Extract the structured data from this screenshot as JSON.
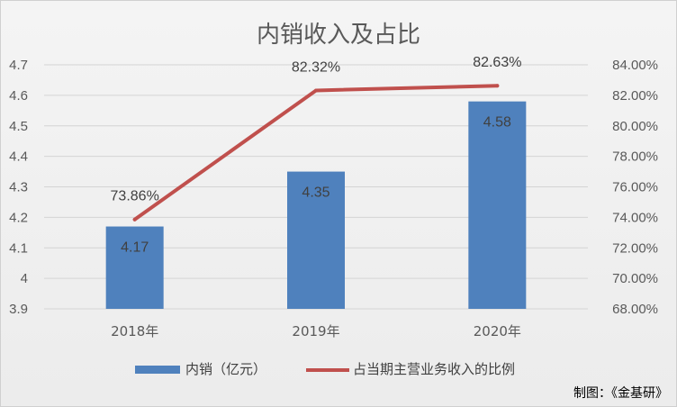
{
  "chart_data": {
    "type": "bar+line",
    "title": "内销收入及占比",
    "categories": [
      "2018年",
      "2019年",
      "2020年"
    ],
    "series": [
      {
        "name": "内销（亿元）",
        "type": "bar",
        "axis": "left",
        "color": "#4f81bd",
        "values": [
          4.17,
          4.35,
          4.58
        ],
        "labels": [
          "4.17",
          "4.35",
          "4.58"
        ]
      },
      {
        "name": "占当期主营业务收入的比例",
        "type": "line",
        "axis": "right",
        "color": "#c0504d",
        "values": [
          73.86,
          82.32,
          82.63
        ],
        "labels": [
          "73.86%",
          "82.32%",
          "82.63%"
        ]
      }
    ],
    "y_left": {
      "min": 3.9,
      "max": 4.7,
      "ticks": [
        3.9,
        4.0,
        4.1,
        4.2,
        4.3,
        4.4,
        4.5,
        4.6,
        4.7
      ],
      "tick_labels": [
        "3.9",
        "4",
        "4.1",
        "4.2",
        "4.3",
        "4.4",
        "4.5",
        "4.6",
        "4.7"
      ]
    },
    "y_right": {
      "min": 68,
      "max": 84,
      "ticks": [
        68,
        70,
        72,
        74,
        76,
        78,
        80,
        82,
        84
      ],
      "tick_labels": [
        "68.00%",
        "70.00%",
        "72.00%",
        "74.00%",
        "76.00%",
        "78.00%",
        "80.00%",
        "82.00%",
        "84.00%"
      ]
    },
    "grid": true,
    "legend_position": "bottom"
  },
  "credit": "制图：《金基研》"
}
